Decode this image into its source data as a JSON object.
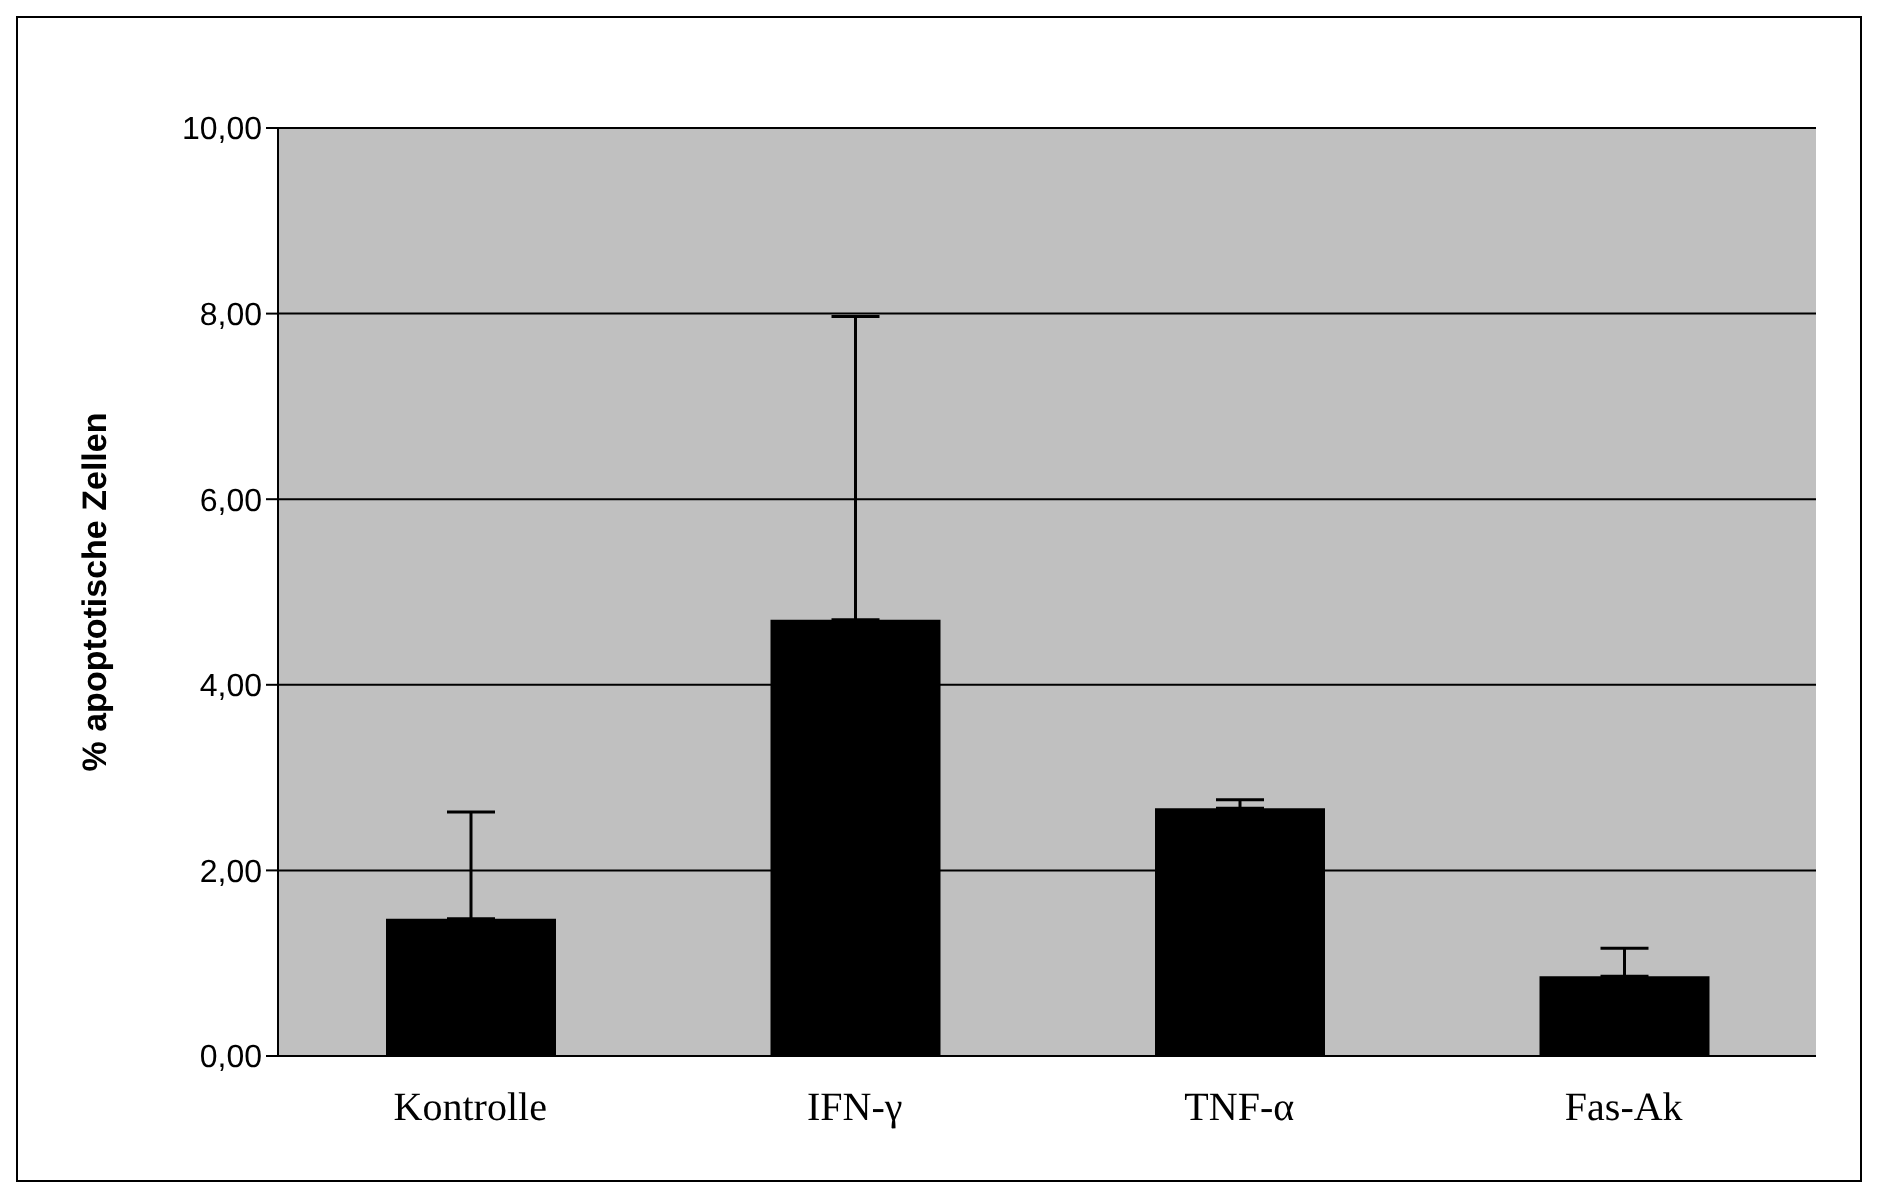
{
  "chart_data": {
    "type": "bar",
    "ylabel": "% apoptotische Zellen",
    "categories": [
      "Kontrolle",
      "IFN-γ",
      "TNF-α",
      "Fas-Ak"
    ],
    "values": [
      1.48,
      4.7,
      2.67,
      0.86
    ],
    "errors": [
      [
        1.48,
        2.63
      ],
      [
        4.7,
        7.97
      ],
      [
        2.67,
        2.76
      ],
      [
        0.86,
        1.16
      ]
    ],
    "color": "#000000",
    "ylim": [
      0,
      10
    ],
    "yticks": [
      {
        "value": 0,
        "label": "0,00"
      },
      {
        "value": 2,
        "label": "2,00"
      },
      {
        "value": 4,
        "label": "4,00"
      },
      {
        "value": 6,
        "label": "6,00"
      },
      {
        "value": 8,
        "label": "8,00"
      },
      {
        "value": 10,
        "label": "10,00"
      }
    ],
    "grid": "y"
  }
}
